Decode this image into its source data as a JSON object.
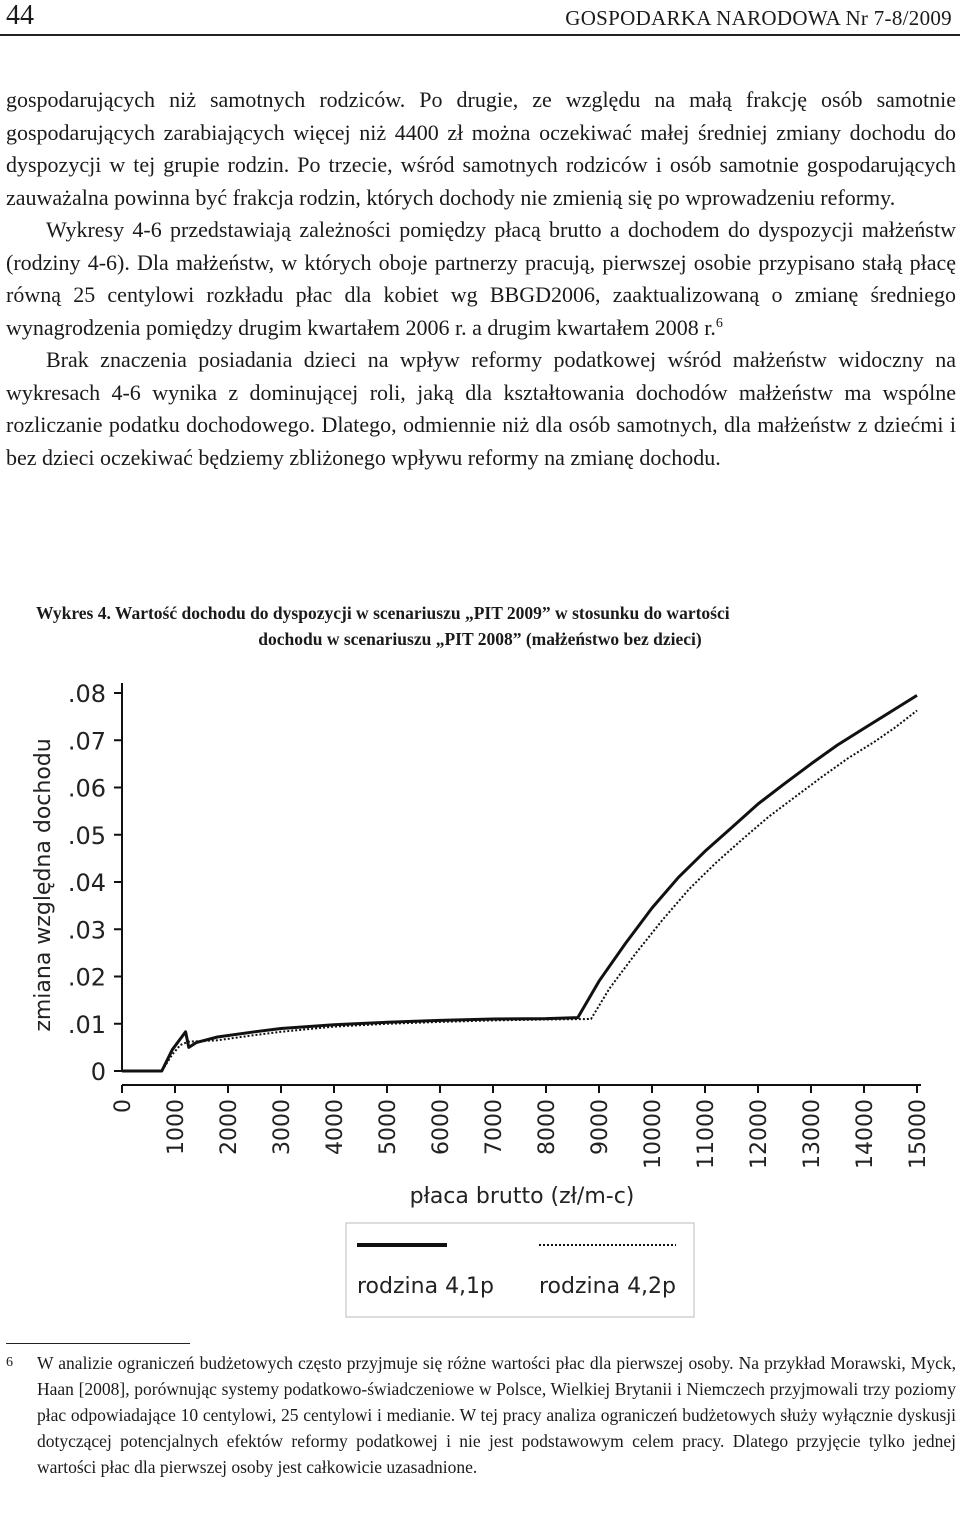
{
  "header": {
    "page_number": "44",
    "journal": "GOSPODARKA NARODOWA Nr 7-8/2009"
  },
  "body": {
    "p1": "gospodarujących niż samotnych rodziców. Po drugie, ze względu na małą frakcję osób samotnie gospodarujących zarabiających więcej niż 4400 zł można oczekiwać małej średniej zmiany dochodu do dyspozycji w tej grupie rodzin. Po trzecie, wśród samotnych rodziców i osób samotnie gospodarujących zauważalna powinna być frakcja rodzin, których dochody nie zmienią się po wprowadzeniu reformy.",
    "p2": "Wykresy 4-6 przedstawiają zależności pomiędzy płacą brutto a dochodem do dyspozycji małżeństw (rodziny 4-6). Dla małżeństw, w których oboje partnerzy pracują, pierwszej osobie przypisano stałą płacę równą 25 centylowi rozkładu płac dla kobiet wg BBGD2006, zaaktualizowaną o zmianę średniego wynagrodzenia pomiędzy drugim kwartałem 2006 r. a drugim kwartałem 2008 r.",
    "p2_footnote_ref": "6",
    "p3": "Brak znaczenia posiadania dzieci na wpływ reformy podatkowej wśród małżeństw widoczny na wykresach 4-6 wynika z dominującej roli, jaką dla kształtowania dochodów małżeństw ma wspólne rozliczanie podatku dochodowego. Dlatego, odmiennie niż dla osób samotnych, dla małżeństw z dziećmi i bez dzieci oczekiwać będziemy zbliżonego wpływu reformy na zmianę dochodu."
  },
  "figure": {
    "caption_line1": "Wykres 4. Wartość dochodu do dyspozycji w scenariuszu „PIT 2009” w stosunku do wartości",
    "caption_line2": "dochodu w scenariuszu „PIT 2008” (małżeństwo bez dzieci)"
  },
  "chart_data": {
    "type": "line",
    "title": "",
    "xlabel": "płaca brutto (zł/m-c)",
    "ylabel": "zmiana względna dochodu",
    "xlim": [
      0,
      15000
    ],
    "ylim": [
      0,
      0.08
    ],
    "x_ticks": [
      0,
      1000,
      2000,
      3000,
      4000,
      5000,
      6000,
      7000,
      8000,
      9000,
      10000,
      11000,
      12000,
      13000,
      14000,
      15000
    ],
    "x_tick_labels": [
      "0",
      "1000",
      "2000",
      "3000",
      "4000",
      "5000",
      "6000",
      "7000",
      "8000",
      "9000",
      "10000",
      "11000",
      "12000",
      "13000",
      "14000",
      "15000"
    ],
    "y_ticks": [
      0,
      0.01,
      0.02,
      0.03,
      0.04,
      0.05,
      0.06,
      0.07,
      0.08
    ],
    "y_tick_labels": [
      "0",
      ".01",
      ".02",
      ".03",
      ".04",
      ".05",
      ".06",
      ".07",
      ".08"
    ],
    "grid": false,
    "legend_position": "bottom",
    "series": [
      {
        "name": "rodzina 4,1p",
        "style": "solid",
        "color": "#111111",
        "points": [
          [
            0,
            0
          ],
          [
            750,
            0
          ],
          [
            950,
            0.0045
          ],
          [
            1100,
            0.0068
          ],
          [
            1200,
            0.0083
          ],
          [
            1260,
            0.005
          ],
          [
            1400,
            0.006
          ],
          [
            1800,
            0.0072
          ],
          [
            2500,
            0.0083
          ],
          [
            3000,
            0.009
          ],
          [
            4000,
            0.0098
          ],
          [
            5000,
            0.0103
          ],
          [
            6000,
            0.0107
          ],
          [
            7000,
            0.011
          ],
          [
            8000,
            0.0111
          ],
          [
            8600,
            0.0113
          ],
          [
            9000,
            0.019
          ],
          [
            9500,
            0.027
          ],
          [
            10000,
            0.0345
          ],
          [
            10500,
            0.041
          ],
          [
            11000,
            0.0465
          ],
          [
            11500,
            0.0515
          ],
          [
            12000,
            0.0565
          ],
          [
            12500,
            0.0608
          ],
          [
            13000,
            0.065
          ],
          [
            13500,
            0.069
          ],
          [
            14000,
            0.0725
          ],
          [
            14500,
            0.076
          ],
          [
            15000,
            0.0795
          ]
        ]
      },
      {
        "name": "rodzina 4,2p",
        "style": "dotted",
        "color": "#111111",
        "points": [
          [
            0,
            0
          ],
          [
            750,
            0
          ],
          [
            950,
            0.0035
          ],
          [
            1100,
            0.0055
          ],
          [
            1250,
            0.0062
          ],
          [
            1800,
            0.0065
          ],
          [
            2500,
            0.0076
          ],
          [
            3000,
            0.0083
          ],
          [
            4000,
            0.0094
          ],
          [
            5000,
            0.01
          ],
          [
            6000,
            0.0104
          ],
          [
            7000,
            0.0107
          ],
          [
            8000,
            0.0109
          ],
          [
            8850,
            0.011
          ],
          [
            9200,
            0.0175
          ],
          [
            9700,
            0.025
          ],
          [
            10200,
            0.032
          ],
          [
            10700,
            0.0385
          ],
          [
            11200,
            0.044
          ],
          [
            11700,
            0.049
          ],
          [
            12200,
            0.0538
          ],
          [
            12700,
            0.058
          ],
          [
            13200,
            0.0622
          ],
          [
            13700,
            0.0662
          ],
          [
            14200,
            0.0697
          ],
          [
            14600,
            0.0728
          ],
          [
            15000,
            0.0763
          ]
        ]
      }
    ]
  },
  "footnote": {
    "number": "6",
    "text": "W analizie ograniczeń budżetowych często przyjmuje się różne wartości płac dla pierwszej osoby. Na przykład Morawski, Myck, Haan [2008], porównując systemy podatkowo-świadczeniowe w Polsce, Wielkiej Brytanii i Niemczech przyjmowali trzy poziomy płac odpowiadające 10 centylowi, 25 centylowi i medianie. W tej pracy analiza ograniczeń budżetowych służy wyłącznie dyskusji dotyczącej potencjalnych efektów reformy podatkowej i nie jest podstawowym celem pracy. Dlatego przyjęcie tylko jednej wartości płac dla pierwszej osoby jest całkowicie uzasadnione."
  }
}
